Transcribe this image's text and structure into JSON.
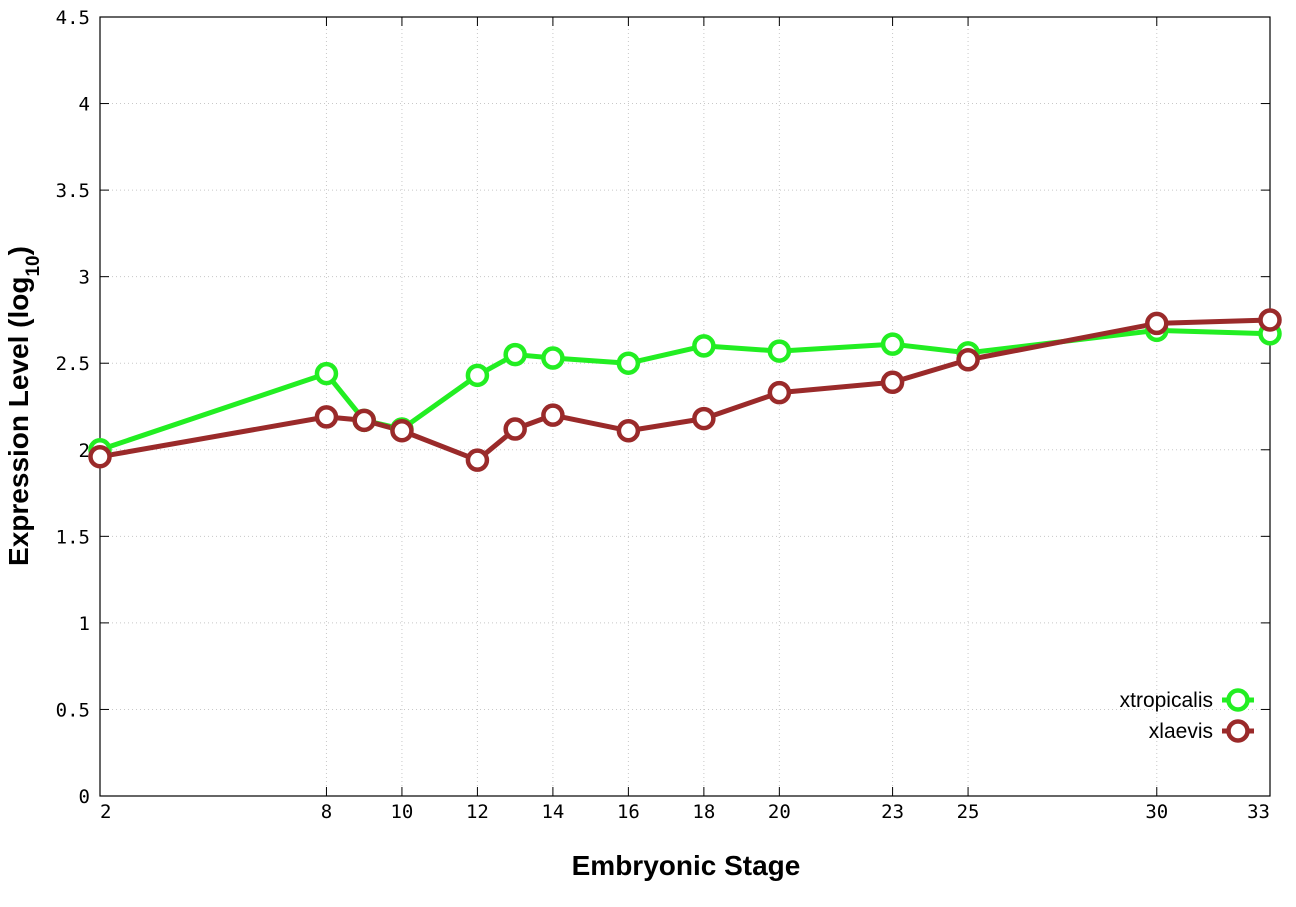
{
  "chart_data": {
    "type": "line",
    "xlabel": "Embryonic Stage",
    "ylabel_main": "Expression Level (log",
    "ylabel_sub": "10",
    "ylabel_close": ")",
    "x_ticks": [
      "2",
      "8",
      "10",
      "12",
      "14",
      "16",
      "18",
      "20",
      "23",
      "25",
      "30",
      "33"
    ],
    "y_ticks": [
      "0",
      "0.5",
      "1",
      "1.5",
      "2",
      "2.5",
      "3",
      "3.5",
      "4",
      "4.5"
    ],
    "ylim": [
      0,
      4.5
    ],
    "grid": true,
    "legend_position": "bottom-right",
    "x": [
      "2",
      "8",
      "9",
      "10",
      "12",
      "13",
      "14",
      "16",
      "18",
      "20",
      "23",
      "25",
      "30",
      "33"
    ],
    "series": [
      {
        "name": "xtropicalis",
        "color": "#22ee22",
        "values": [
          2.0,
          2.44,
          2.17,
          2.12,
          2.43,
          2.55,
          2.53,
          2.5,
          2.6,
          2.57,
          2.61,
          2.56,
          2.69,
          2.67
        ]
      },
      {
        "name": "xlaevis",
        "color": "#9a2a2a",
        "values": [
          1.96,
          2.19,
          2.17,
          2.11,
          1.94,
          2.12,
          2.2,
          2.11,
          2.18,
          2.33,
          2.39,
          2.52,
          2.73,
          2.75
        ]
      }
    ]
  }
}
